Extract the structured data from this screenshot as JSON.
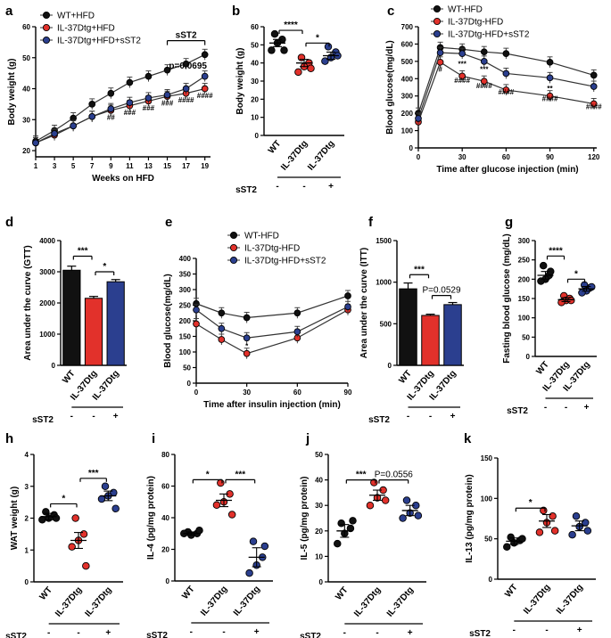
{
  "colors": {
    "wt": "#111111",
    "ko": "#e2312b",
    "st2": "#2b3f8f"
  },
  "chart_data": [
    {
      "id": "a",
      "panel_label": "a",
      "type": "line",
      "x_label": "Weeks on HFD",
      "y_label": "Body weight (g)",
      "x": [
        1,
        3,
        5,
        7,
        9,
        11,
        13,
        15,
        17,
        19
      ],
      "xlim": [
        1,
        19.6
      ],
      "ylim": [
        18,
        60
      ],
      "yticks": [
        20,
        30,
        40,
        50,
        60
      ],
      "series": [
        {
          "name": "WT+HFD",
          "color_key": "wt",
          "values": [
            23,
            26.5,
            30.5,
            35,
            38.5,
            42,
            44,
            46,
            48,
            51
          ]
        },
        {
          "name": "IL-37Dtg+HFD",
          "color_key": "ko",
          "values": [
            22.5,
            25,
            28,
            31,
            33,
            34.5,
            36,
            37.5,
            38.5,
            40
          ]
        },
        {
          "name": "IL-37Dtg+HFD+sST2",
          "color_key": "st2",
          "values": [
            22.5,
            25.5,
            28,
            31,
            33.5,
            35.5,
            37,
            38,
            40,
            44
          ]
        }
      ],
      "annotations": [
        {
          "text": "sST2",
          "x": 15,
          "x2": 19,
          "y": 55.5
        },
        {
          "text": "p=0.0695",
          "x": 17.2,
          "y": 46.5
        },
        {
          "text": "##",
          "x": 9,
          "y": 30
        },
        {
          "text": "###",
          "x": 11,
          "y": 31.5
        },
        {
          "text": "###",
          "x": 13,
          "y": 33
        },
        {
          "text": "###",
          "x": 15,
          "y": 34.5
        },
        {
          "text": "####",
          "x": 17,
          "y": 35.5
        },
        {
          "text": "####",
          "x": 19,
          "y": 37
        }
      ]
    },
    {
      "id": "b",
      "panel_label": "b",
      "type": "scatter_bar",
      "y_label": "Body weight (g)",
      "ylim": [
        0,
        60
      ],
      "yticks": [
        0,
        10,
        20,
        30,
        40,
        50,
        60
      ],
      "categories": [
        "WT",
        "IL-37Dtg",
        "IL-37Dtg"
      ],
      "sst2": [
        "-",
        "-",
        "+"
      ],
      "sst2_label": "sST2",
      "groups": [
        {
          "color_key": "wt",
          "mean": 51,
          "sem": 2,
          "points": [
            56,
            53,
            51,
            47,
            47
          ]
        },
        {
          "color_key": "ko",
          "mean": 40,
          "sem": 2,
          "points": [
            43,
            40,
            38,
            35,
            37
          ]
        },
        {
          "color_key": "st2",
          "mean": 44,
          "sem": 2,
          "points": [
            49,
            46,
            43,
            41,
            44
          ]
        }
      ],
      "brackets": [
        {
          "from": 0,
          "to": 1,
          "y": 58,
          "text": "****"
        },
        {
          "from": 1,
          "to": 2,
          "y": 51,
          "text": "*"
        }
      ]
    },
    {
      "id": "c",
      "panel_label": "c",
      "type": "line",
      "x_label": "Time after glucose injection (min)",
      "y_label": "Blood glucose(mg/dL)",
      "x": [
        0,
        15,
        30,
        45,
        60,
        90,
        120
      ],
      "xlim": [
        0,
        122
      ],
      "ylim": [
        0,
        700
      ],
      "yticks": [
        0,
        100,
        200,
        300,
        400,
        500,
        600,
        700
      ],
      "xticks": [
        0,
        30,
        60,
        90,
        120
      ],
      "series": [
        {
          "name": "WT-HFD",
          "color_key": "wt",
          "values": [
            200,
            580,
            570,
            555,
            545,
            495,
            420
          ]
        },
        {
          "name": "IL-37Dtg-HFD",
          "color_key": "ko",
          "values": [
            150,
            495,
            415,
            385,
            335,
            300,
            255
          ]
        },
        {
          "name": "IL-37Dtg-HFD+sST2",
          "color_key": "st2",
          "values": [
            170,
            550,
            545,
            500,
            430,
            405,
            355
          ]
        }
      ],
      "annotations": [
        {
          "text": "#",
          "x": 15,
          "y": 440
        },
        {
          "text": "***",
          "x": 30,
          "y": 470
        },
        {
          "text": "####",
          "x": 30,
          "y": 375
        },
        {
          "text": "***",
          "x": 45,
          "y": 440
        },
        {
          "text": "####",
          "x": 45,
          "y": 345
        },
        {
          "text": "####",
          "x": 60,
          "y": 310
        },
        {
          "text": "**",
          "x": 90,
          "y": 330
        },
        {
          "text": "####",
          "x": 90,
          "y": 270
        },
        {
          "text": "####",
          "x": 120,
          "y": 225
        }
      ]
    },
    {
      "id": "d",
      "panel_label": "d",
      "type": "bar",
      "y_label": "Area under the curve (GTT)",
      "ylim": [
        0,
        4000
      ],
      "yticks": [
        0,
        1000,
        2000,
        3000,
        4000
      ],
      "categories": [
        "WT",
        "IL-37Dtg",
        "IL-37Dtg"
      ],
      "sst2": [
        "-",
        "-",
        "+"
      ],
      "sst2_label": "sST2",
      "groups": [
        {
          "color_key": "wt",
          "mean": 3050,
          "sem": 130
        },
        {
          "color_key": "ko",
          "mean": 2150,
          "sem": 60
        },
        {
          "color_key": "st2",
          "mean": 2680,
          "sem": 70
        }
      ],
      "brackets": [
        {
          "from": 0,
          "to": 1,
          "y": 3500,
          "text": "***"
        },
        {
          "from": 1,
          "to": 2,
          "y": 3000,
          "text": "*"
        }
      ]
    },
    {
      "id": "e",
      "panel_label": "e",
      "type": "line",
      "x_label": "Time after insulin injection (min)",
      "y_label": "Blood glucose(mg/dL)",
      "x": [
        0,
        15,
        30,
        60,
        90
      ],
      "xlim": [
        0,
        90
      ],
      "ylim": [
        0,
        400
      ],
      "yticks": [
        0,
        50,
        100,
        150,
        200,
        250,
        300,
        350,
        400
      ],
      "xticks": [
        0,
        30,
        60,
        90
      ],
      "series": [
        {
          "name": "WT-HFD",
          "color_key": "wt",
          "values": [
            255,
            225,
            210,
            225,
            280
          ]
        },
        {
          "name": "IL-37Dtg-HFD",
          "color_key": "ko",
          "values": [
            190,
            140,
            95,
            145,
            235
          ]
        },
        {
          "name": "IL-37Dtg-HFD+sST2",
          "color_key": "st2",
          "values": [
            235,
            175,
            145,
            165,
            245
          ]
        }
      ],
      "annotations": [
        {
          "text": "*",
          "x": 30,
          "y": 112
        }
      ]
    },
    {
      "id": "f",
      "panel_label": "f",
      "type": "bar",
      "y_label": "Area under the curve (ITT)",
      "ylim": [
        0,
        1500
      ],
      "yticks": [
        0,
        500,
        1000,
        1500
      ],
      "categories": [
        "WT",
        "IL-37Dtg",
        "IL-37Dtg"
      ],
      "sst2": [
        "-",
        "-",
        "+"
      ],
      "sst2_label": "sST2",
      "groups": [
        {
          "color_key": "wt",
          "mean": 920,
          "sem": 70
        },
        {
          "color_key": "ko",
          "mean": 600,
          "sem": 15
        },
        {
          "color_key": "st2",
          "mean": 730,
          "sem": 25
        }
      ],
      "brackets": [
        {
          "from": 0,
          "to": 1,
          "y": 1090,
          "text": "***"
        },
        {
          "from": 1,
          "to": 2,
          "y": 840,
          "text": "P=0.0529"
        }
      ]
    },
    {
      "id": "g",
      "panel_label": "g",
      "type": "scatter_bar",
      "y_label": "Fasting blood glucose (mg/dL)",
      "ylim": [
        0,
        300
      ],
      "yticks": [
        0,
        50,
        100,
        150,
        200,
        250,
        300
      ],
      "categories": [
        "WT",
        "IL-37Dtg",
        "IL-37Dtg"
      ],
      "sst2": [
        "-",
        "-",
        "+"
      ],
      "sst2_label": "sST2",
      "groups": [
        {
          "color_key": "wt",
          "mean": 210,
          "sem": 10,
          "points": [
            235,
            210,
            200,
            195,
            220
          ]
        },
        {
          "color_key": "ko",
          "mean": 147,
          "sem": 5,
          "points": [
            157,
            150,
            145,
            140,
            145
          ]
        },
        {
          "color_key": "st2",
          "mean": 175,
          "sem": 6,
          "points": [
            185,
            178,
            170,
            165,
            180
          ]
        }
      ],
      "brackets": [
        {
          "from": 0,
          "to": 1,
          "y": 260,
          "text": "****"
        },
        {
          "from": 1,
          "to": 2,
          "y": 200,
          "text": "*"
        }
      ]
    },
    {
      "id": "h",
      "panel_label": "h",
      "type": "scatter_bar",
      "y_label": "WAT weight (g)",
      "ylim": [
        0,
        4
      ],
      "yticks": [
        0,
        1,
        2,
        3,
        4
      ],
      "categories": [
        "WT",
        "IL-37Dtg",
        "IL-37Dtg"
      ],
      "sst2": [
        "-",
        "-",
        "+"
      ],
      "sst2_label": "sST2",
      "groups": [
        {
          "color_key": "wt",
          "mean": 2.05,
          "sem": 0.1,
          "points": [
            2.2,
            2.1,
            2,
            1.95,
            2
          ]
        },
        {
          "color_key": "ko",
          "mean": 1.3,
          "sem": 0.25,
          "points": [
            2.0,
            1.5,
            1.3,
            1.1,
            0.5
          ]
        },
        {
          "color_key": "st2",
          "mean": 2.7,
          "sem": 0.15,
          "points": [
            3.0,
            2.8,
            2.7,
            2.6,
            2.3
          ]
        }
      ],
      "brackets": [
        {
          "from": 0,
          "to": 1,
          "y": 2.45,
          "text": "*"
        },
        {
          "from": 1,
          "to": 2,
          "y": 3.25,
          "text": "***"
        }
      ]
    },
    {
      "id": "i",
      "panel_label": "i",
      "type": "scatter_bar",
      "y_label": "IL-4 (pg/mg protein)",
      "ylim": [
        0,
        80
      ],
      "yticks": [
        0,
        20,
        40,
        60,
        80
      ],
      "categories": [
        "WT",
        "IL-37Dtg",
        "IL-37Dtg"
      ],
      "sst2": [
        "-",
        "-",
        "+"
      ],
      "sst2_label": "sST2",
      "groups": [
        {
          "color_key": "wt",
          "mean": 30,
          "sem": 1,
          "points": [
            31,
            30,
            29,
            30,
            32
          ]
        },
        {
          "color_key": "ko",
          "mean": 51,
          "sem": 4,
          "points": [
            62,
            55,
            50,
            48,
            42
          ]
        },
        {
          "color_key": "st2",
          "mean": 15,
          "sem": 6,
          "points": [
            25,
            15,
            10,
            5,
            22
          ]
        }
      ],
      "brackets": [
        {
          "from": 0,
          "to": 1,
          "y": 64,
          "text": "*"
        },
        {
          "from": 1,
          "to": 2,
          "y": 64,
          "text": "***"
        }
      ]
    },
    {
      "id": "j",
      "panel_label": "j",
      "type": "scatter_bar",
      "y_label": "IL-5 (pg/mg protein)",
      "ylim": [
        0,
        50
      ],
      "yticks": [
        0,
        10,
        20,
        30,
        40,
        50
      ],
      "categories": [
        "WT",
        "IL-37Dtg",
        "IL-37Dtg"
      ],
      "sst2": [
        "-",
        "-",
        "+"
      ],
      "sst2_label": "sST2",
      "groups": [
        {
          "color_key": "wt",
          "mean": 20,
          "sem": 2.5,
          "points": [
            23,
            21,
            19,
            15,
            24
          ]
        },
        {
          "color_key": "ko",
          "mean": 34,
          "sem": 2,
          "points": [
            39,
            36,
            33,
            30,
            32
          ]
        },
        {
          "color_key": "st2",
          "mean": 28,
          "sem": 2,
          "points": [
            32,
            30,
            27,
            25,
            26
          ]
        }
      ],
      "brackets": [
        {
          "from": 0,
          "to": 1,
          "y": 40,
          "text": "***"
        },
        {
          "from": 1,
          "to": 2,
          "y": 40,
          "text": "P=0.0556"
        }
      ]
    },
    {
      "id": "k",
      "panel_label": "k",
      "type": "scatter_bar",
      "y_label": "IL-13 (pg/mg protein)",
      "ylim": [
        0,
        150
      ],
      "yticks": [
        0,
        50,
        100,
        150
      ],
      "categories": [
        "WT",
        "IL-37Dtg",
        "IL-37Dtg"
      ],
      "sst2": [
        "-",
        "-",
        "+"
      ],
      "sst2_label": "sST2",
      "groups": [
        {
          "color_key": "wt",
          "mean": 47,
          "sem": 4,
          "points": [
            52,
            48,
            45,
            40,
            50
          ]
        },
        {
          "color_key": "ko",
          "mean": 72,
          "sem": 8,
          "points": [
            85,
            78,
            70,
            58,
            60
          ]
        },
        {
          "color_key": "st2",
          "mean": 66,
          "sem": 6,
          "points": [
            78,
            70,
            65,
            55,
            60
          ]
        }
      ],
      "brackets": [
        {
          "from": 0,
          "to": 1,
          "y": 88,
          "text": "*"
        }
      ]
    }
  ]
}
